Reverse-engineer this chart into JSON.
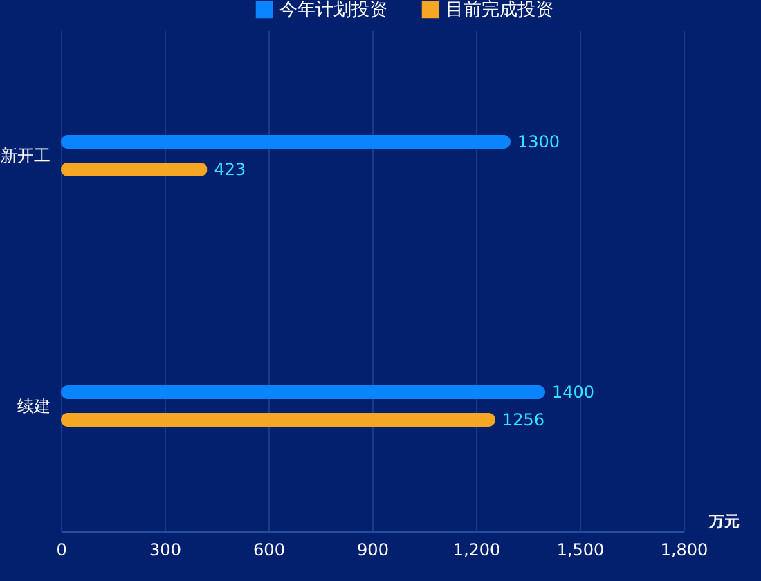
{
  "chart_data": {
    "type": "bar",
    "orientation": "horizontal",
    "categories": [
      "新开工",
      "续建"
    ],
    "series": [
      {
        "name": "今年计划投资",
        "color": "#0a84ff",
        "values": [
          1300,
          1400
        ]
      },
      {
        "name": "目前完成投资",
        "color": "#f5a623",
        "values": [
          423,
          1256
        ]
      }
    ],
    "xlabel": "万元",
    "xlim": [
      0,
      1800
    ],
    "xticks": [
      0,
      300,
      600,
      900,
      {
        "value": 1200,
        "label": "1,200"
      },
      {
        "value": 1500,
        "label": "1,500"
      },
      {
        "value": 1800,
        "label": "1,800"
      }
    ],
    "grid": "x",
    "legend": "top",
    "data_labels": true
  }
}
